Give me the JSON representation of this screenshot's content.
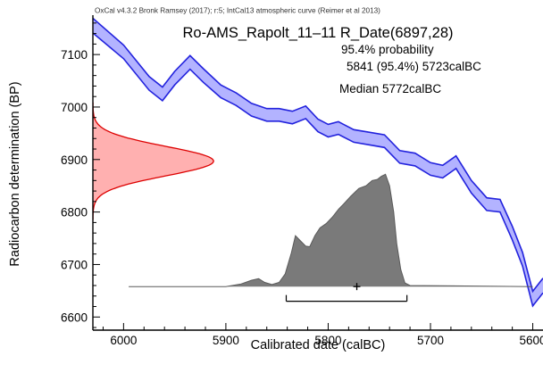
{
  "credit": "OxCal v4.3.2 Bronk Ramsey (2017); r:5; IntCal13 atmospheric curve (Reimer et al 2013)",
  "title": "Ro-AMS_Rapolt_11–11 R_Date(6897,28)",
  "probability_heading": "95.4% probability",
  "range_text": "5841 (95.4%) 5723calBC",
  "median_text": "Median 5772calBC",
  "colors": {
    "curve_fill": "#b3b3ff",
    "curve_stroke": "#2222dd",
    "radiocarbon_fill": "#ffb0b0",
    "radiocarbon_stroke": "#dd0000",
    "calibrated_fill": "#7a7a7a",
    "calibrated_stroke": "#5a5a5a"
  },
  "chart_data": {
    "type": "area",
    "xlabel": "Calibrated date (calBC)",
    "ylabel": "Radiocarbon determination (BP)",
    "xlim": [
      6030,
      5590
    ],
    "ylim": [
      6575,
      7175
    ],
    "x_ticks": [
      6000,
      5900,
      5800,
      5700,
      5600
    ],
    "y_ticks": [
      6600,
      6700,
      6800,
      6900,
      7000,
      7100
    ],
    "calibration_curve": {
      "x": [
        6030,
        6000,
        5975,
        5962,
        5950,
        5935,
        5922,
        5905,
        5890,
        5875,
        5860,
        5848,
        5835,
        5822,
        5810,
        5800,
        5790,
        5775,
        5760,
        5745,
        5730,
        5715,
        5700,
        5688,
        5675,
        5660,
        5645,
        5632,
        5620,
        5610,
        5600,
        5590
      ],
      "y": [
        7155,
        7105,
        7045,
        7025,
        7055,
        7085,
        7060,
        7030,
        7015,
        6995,
        6985,
        6985,
        6980,
        6990,
        6965,
        6955,
        6960,
        6945,
        6940,
        6935,
        6905,
        6900,
        6882,
        6877,
        6895,
        6848,
        6815,
        6812,
        6760,
        6710,
        6635,
        6660
      ],
      "half_width": [
        14,
        13,
        13,
        13,
        13,
        13,
        13,
        12,
        12,
        12,
        12,
        12,
        12,
        12,
        12,
        12,
        12,
        12,
        12,
        12,
        12,
        12,
        12,
        12,
        12,
        12,
        12,
        12,
        13,
        13,
        14,
        14
      ]
    },
    "radiocarbon_distribution": {
      "mean": 6897,
      "sigma": 28,
      "peak_x": 5912
    },
    "calibrated_distribution": {
      "baseline": 6658,
      "x": [
        5995,
        5900,
        5885,
        5875,
        5868,
        5862,
        5855,
        5848,
        5842,
        5836,
        5832,
        5827,
        5822,
        5818,
        5813,
        5808,
        5802,
        5796,
        5790,
        5785,
        5778,
        5770,
        5763,
        5757,
        5752,
        5748,
        5744,
        5740,
        5736,
        5733,
        5729,
        5725,
        5720,
        5600
      ],
      "y": [
        6658,
        6658,
        6663,
        6670,
        6673,
        6666,
        6662,
        6666,
        6682,
        6722,
        6755,
        6745,
        6735,
        6734,
        6755,
        6770,
        6778,
        6790,
        6805,
        6815,
        6830,
        6845,
        6850,
        6860,
        6862,
        6868,
        6872,
        6850,
        6800,
        6740,
        6690,
        6665,
        6660,
        6658
      ]
    },
    "range_95": {
      "from": 5841,
      "to": 5723,
      "y": 6630
    },
    "median": 5772
  }
}
